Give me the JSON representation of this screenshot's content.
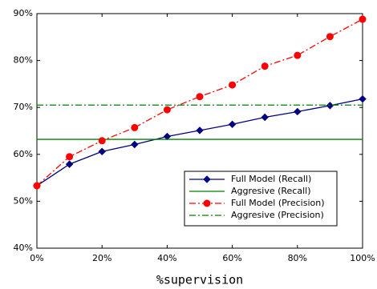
{
  "chart_data": {
    "type": "line",
    "xlabel": "%supervision",
    "x": [
      0,
      10,
      20,
      30,
      40,
      50,
      60,
      70,
      80,
      90,
      100
    ],
    "xlim": [
      0,
      100
    ],
    "xticks": [
      {
        "value": 0,
        "label": "0%"
      },
      {
        "value": 20,
        "label": "20%"
      },
      {
        "value": 40,
        "label": "40%"
      },
      {
        "value": 60,
        "label": "60%"
      },
      {
        "value": 80,
        "label": "80%"
      },
      {
        "value": 100,
        "label": "100%"
      }
    ],
    "ylim": [
      40,
      90
    ],
    "yticks": [
      {
        "value": 40,
        "label": "40%"
      },
      {
        "value": 50,
        "label": "50%"
      },
      {
        "value": 60,
        "label": "60%"
      },
      {
        "value": 70,
        "label": "70%"
      },
      {
        "value": 80,
        "label": "80%"
      },
      {
        "value": 90,
        "label": "90%"
      }
    ],
    "legend": "lower-right",
    "series": [
      {
        "name": "Full Model (Recall)",
        "color": "#000080",
        "dash": "solid",
        "marker": "diamond",
        "values": [
          53.3,
          57.9,
          60.6,
          62.1,
          63.8,
          65.1,
          66.4,
          67.9,
          69.1,
          70.4,
          71.8
        ]
      },
      {
        "name": "Aggresive (Recall)",
        "color": "#008000",
        "dash": "solid",
        "marker": "none",
        "values": [
          63.2,
          63.2,
          63.2,
          63.2,
          63.2,
          63.2,
          63.2,
          63.2,
          63.2,
          63.2,
          63.2
        ]
      },
      {
        "name": "Full Model (Precision)",
        "color": "#ff0000",
        "dash": "dashdot",
        "marker": "circle",
        "values": [
          53.3,
          59.5,
          62.9,
          65.7,
          69.5,
          72.3,
          74.8,
          78.8,
          81.1,
          85.1,
          88.8
        ]
      },
      {
        "name": "Aggresive (Precision)",
        "color": "#008000",
        "dash": "dashdot",
        "marker": "none",
        "values": [
          70.5,
          70.5,
          70.5,
          70.5,
          70.5,
          70.5,
          70.5,
          70.5,
          70.5,
          70.5,
          70.5
        ]
      }
    ]
  }
}
